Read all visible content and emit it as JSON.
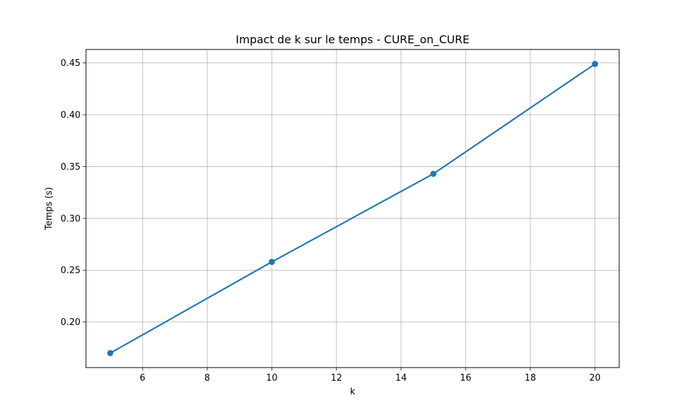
{
  "chart_data": {
    "type": "line",
    "title": "Impact de k sur le temps - CURE_on_CURE",
    "xlabel": "k",
    "ylabel": "Temps (s)",
    "x": [
      5,
      10,
      15,
      20
    ],
    "series": [
      {
        "values": [
          0.17,
          0.258,
          0.343,
          0.449
        ],
        "color": "#1f77b4",
        "marker": "circle"
      }
    ],
    "xlim": [
      4.25,
      20.75
    ],
    "ylim": [
      0.156,
      0.463
    ],
    "xticks": [
      6,
      8,
      10,
      12,
      14,
      16,
      18,
      20
    ],
    "yticks": [
      0.2,
      0.25,
      0.3,
      0.35,
      0.4,
      0.45
    ],
    "xtick_labels": [
      "6",
      "8",
      "10",
      "12",
      "14",
      "16",
      "18",
      "20"
    ],
    "ytick_labels": [
      "0.20",
      "0.25",
      "0.30",
      "0.35",
      "0.40",
      "0.45"
    ],
    "grid": true,
    "legend": "none"
  }
}
